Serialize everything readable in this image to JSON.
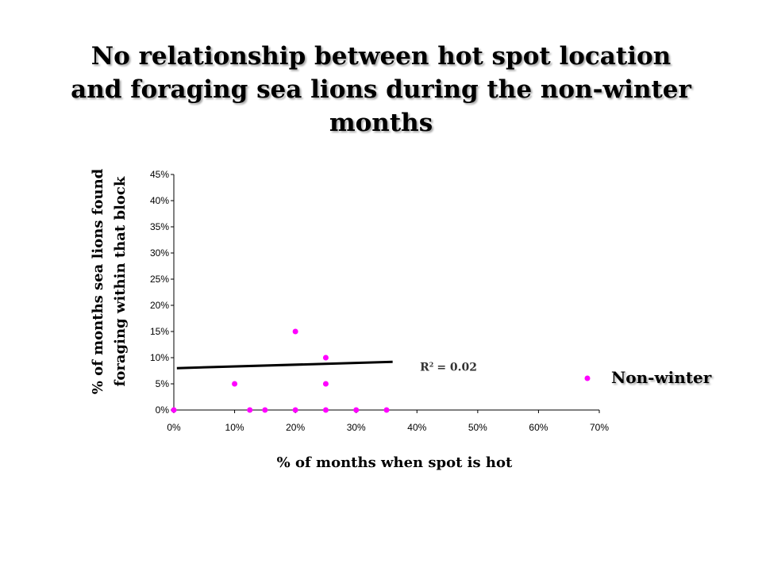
{
  "title_lines": [
    "No relationship between hot spot location",
    "and foraging sea lions during the non-winter",
    "months"
  ],
  "chart_data": {
    "type": "scatter",
    "title": "No relationship between hot spot location and foraging sea lions during the non-winter months",
    "xlabel": "% of months when spot is hot",
    "ylabel": "% of months sea lions found foraging within that block",
    "ylabel_lines": [
      "% of months sea lions found",
      "foraging within that block"
    ],
    "xlim": [
      0,
      70
    ],
    "ylim": [
      0,
      45
    ],
    "x_ticks": [
      0,
      10,
      20,
      30,
      40,
      50,
      60,
      70
    ],
    "y_ticks": [
      0,
      5,
      10,
      15,
      20,
      25,
      30,
      35,
      40,
      45
    ],
    "x_tick_labels": [
      "0%",
      "10%",
      "20%",
      "30%",
      "40%",
      "50%",
      "60%",
      "70%"
    ],
    "y_tick_labels": [
      "0%",
      "5%",
      "10%",
      "15%",
      "20%",
      "25%",
      "30%",
      "35%",
      "40%",
      "45%"
    ],
    "grid": false,
    "legend_position": "right",
    "series": [
      {
        "name": "Non-winter",
        "color": "#ff00ff",
        "points": [
          {
            "x": 0,
            "y": 0
          },
          {
            "x": 10,
            "y": 5
          },
          {
            "x": 12.5,
            "y": 0
          },
          {
            "x": 15,
            "y": 0
          },
          {
            "x": 20,
            "y": 15
          },
          {
            "x": 20,
            "y": 0
          },
          {
            "x": 25,
            "y": 10
          },
          {
            "x": 25,
            "y": 5
          },
          {
            "x": 25,
            "y": 0
          },
          {
            "x": 30,
            "y": 0
          },
          {
            "x": 35,
            "y": 0
          }
        ]
      }
    ],
    "trendline": {
      "x_start": 0.5,
      "y_start": 8.0,
      "x_end": 36,
      "y_end": 9.2,
      "color": "#000000"
    },
    "annotation": {
      "label": "R",
      "superscript": "2",
      "value": "= 0.02",
      "x": 40.5,
      "y": 7.5
    }
  }
}
